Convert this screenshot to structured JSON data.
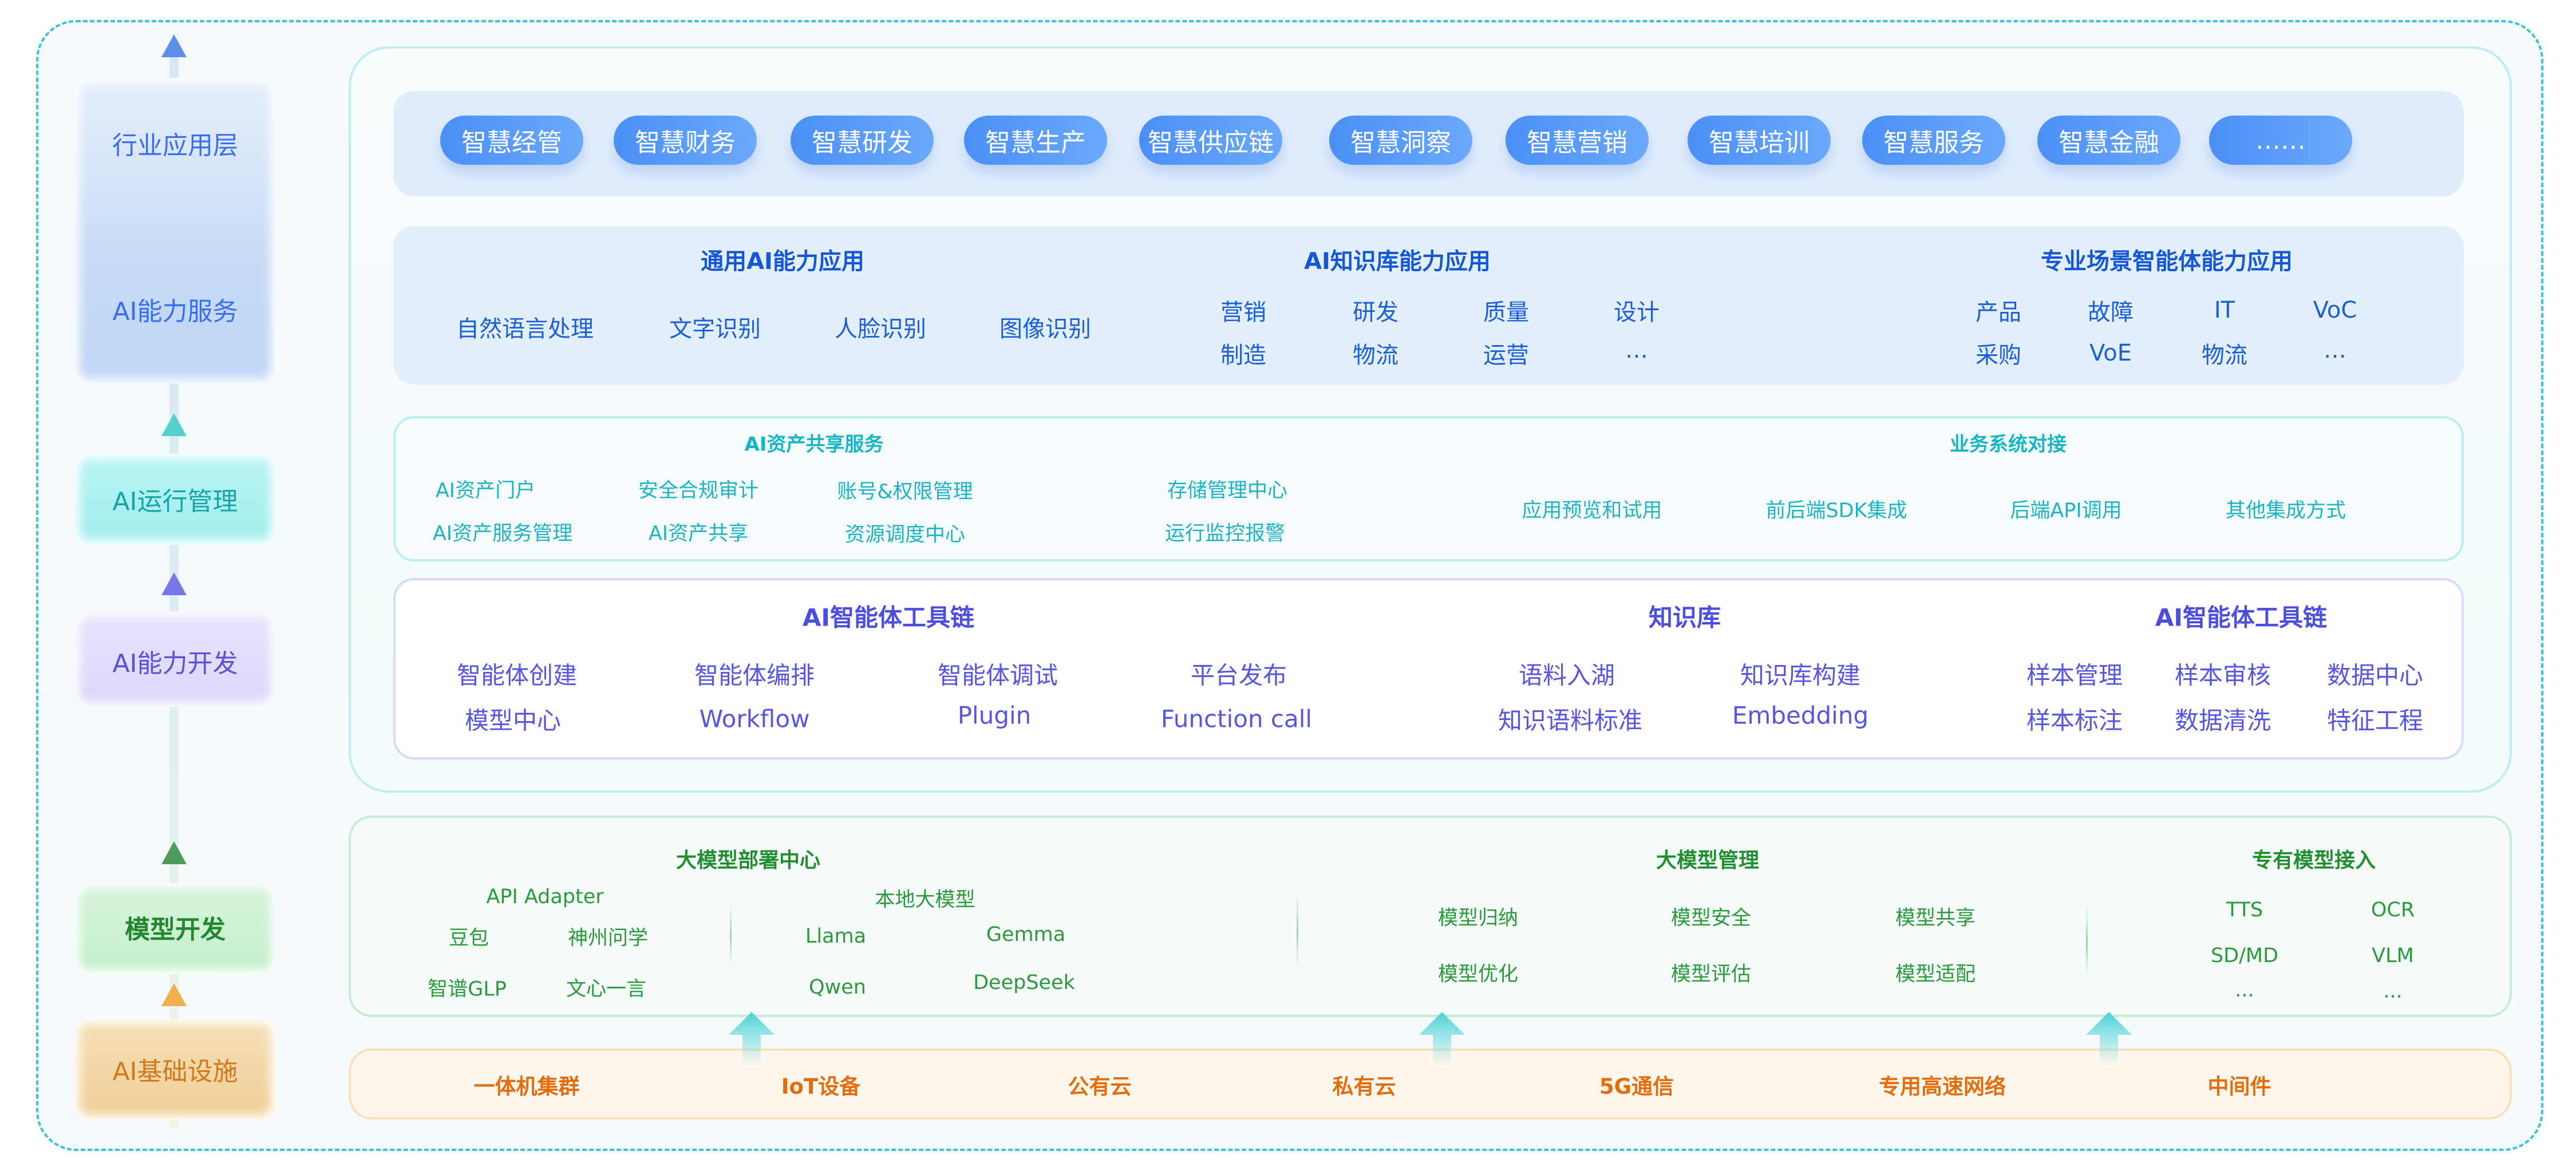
{
  "layers": {
    "industry": "行业应用层",
    "ai_service": "AI能力服务",
    "ai_ops": "AI运行管理",
    "ai_dev": "AI能力开发",
    "model_dev": "模型开发",
    "infra": "AI基础设施"
  },
  "apps": [
    "智慧经管",
    "智慧财务",
    "智慧研发",
    "智慧生产",
    "智慧供应链",
    "智慧洞察",
    "智慧营销",
    "智慧培训",
    "智慧服务",
    "智慧金融",
    "……"
  ],
  "capabilities": {
    "general": {
      "title": "通用AI能力应用",
      "items": [
        "自然语言处理",
        "文字识别",
        "人脸识别",
        "图像识别"
      ]
    },
    "knowledge": {
      "title": "AI知识库能力应用",
      "items": [
        "营销",
        "研发",
        "质量",
        "设计",
        "制造",
        "物流",
        "运营",
        "…"
      ]
    },
    "scenario": {
      "title": "专业场景智能体能力应用",
      "items": [
        "产品",
        "故障",
        "IT",
        "VoC",
        "采购",
        "VoE",
        "物流",
        "…"
      ]
    }
  },
  "ops": {
    "asset": {
      "title": "AI资产共享服务",
      "items": [
        "AI资产门户",
        "安全合规审计",
        "账号&权限管理",
        "存储管理中心",
        "AI资产服务管理",
        "AI资产共享",
        "资源调度中心",
        "运行监控报警"
      ]
    },
    "integration": {
      "title": "业务系统对接",
      "items": [
        "应用预览和试用",
        "前后端SDK集成",
        "后端API调用",
        "其他集成方式"
      ]
    }
  },
  "dev": {
    "toolchain": {
      "title": "AI智能体工具链",
      "items": [
        "智能体创建",
        "智能体编排",
        "智能体调试",
        "平台发布",
        "模型中心",
        "Workflow",
        "Plugin",
        "Function call"
      ]
    },
    "kb": {
      "title": "知识库",
      "items": [
        "语料入湖",
        "知识库构建",
        "知识语料标准",
        "Embedding"
      ]
    },
    "toolchain2": {
      "title": "AI智能体工具链",
      "items": [
        "样本管理",
        "样本审核",
        "数据中心",
        "样本标注",
        "数据清洗",
        "特征工程"
      ]
    }
  },
  "model": {
    "deploy": {
      "title": "大模型部署中心",
      "api_adapter": "API Adapter",
      "api_items": [
        "豆包",
        "神州问学",
        "智谱GLP",
        "文心一言"
      ],
      "local": "本地大模型",
      "local_items": [
        "Llama",
        "Gemma",
        "Qwen",
        "DeepSeek"
      ]
    },
    "manage": {
      "title": "大模型管理",
      "items": [
        "模型归纳",
        "模型安全",
        "模型共享",
        "模型优化",
        "模型评估",
        "模型适配"
      ]
    },
    "proprietary": {
      "title": "专有模型接入",
      "items": [
        "TTS",
        "OCR",
        "SD/MD",
        "VLM",
        "...",
        "..."
      ]
    }
  },
  "infra": [
    "一体机集群",
    "IoT设备",
    "公有云",
    "私有云",
    "5G通信",
    "专用高速网络",
    "中间件"
  ],
  "colors": {
    "chip": "#4b8ff6",
    "service": "#1357d6",
    "ops": "#14b5c4",
    "dev": "#4b4de0",
    "model": "#1f8f2e",
    "infra": "#e46c0a",
    "border": "#3cc4d4"
  }
}
